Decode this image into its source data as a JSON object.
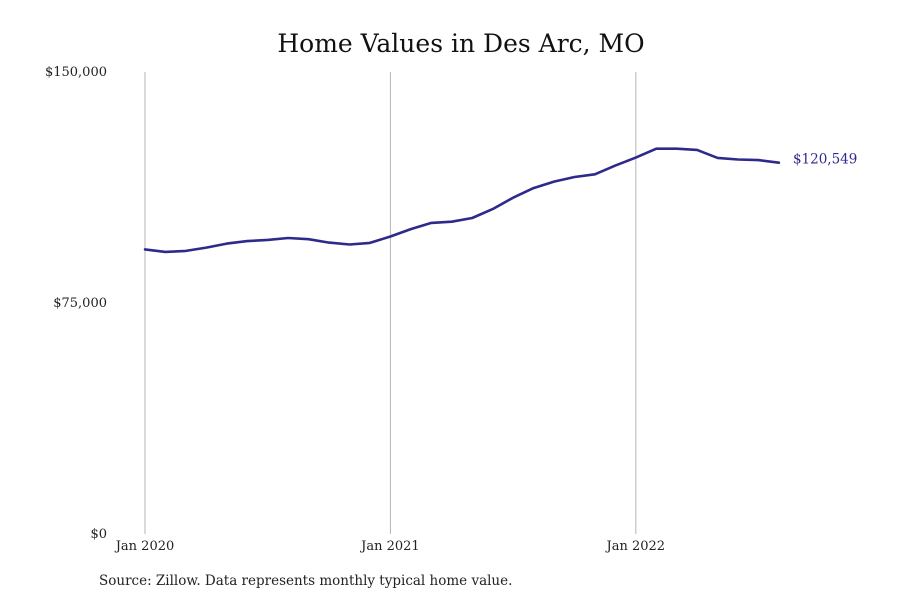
{
  "chart_data": {
    "type": "line",
    "title": "Home Values in Des Arc, MO",
    "xlabel": "",
    "ylabel": "",
    "ylim": [
      0,
      150000
    ],
    "yticks": [
      {
        "value": 0,
        "label": "$0"
      },
      {
        "value": 75000,
        "label": "$75,000"
      },
      {
        "value": 150000,
        "label": "$150,000"
      }
    ],
    "xticks": [
      {
        "value": "2020-01",
        "label": "Jan 2020"
      },
      {
        "value": "2021-01",
        "label": "Jan 2021"
      },
      {
        "value": "2022-01",
        "label": "Jan 2022"
      }
    ],
    "grid": "vertical",
    "series": [
      {
        "name": "",
        "color": "#2e2a8c",
        "x": [
          "2020-01",
          "2020-02",
          "2020-03",
          "2020-04",
          "2020-05",
          "2020-06",
          "2020-07",
          "2020-08",
          "2020-09",
          "2020-10",
          "2020-11",
          "2020-12",
          "2021-01",
          "2021-02",
          "2021-03",
          "2021-04",
          "2021-05",
          "2021-06",
          "2021-07",
          "2021-08",
          "2021-09",
          "2021-10",
          "2021-11",
          "2021-12",
          "2022-01",
          "2022-02",
          "2022-03",
          "2022-04",
          "2022-05",
          "2022-06",
          "2022-07",
          "2022-08"
        ],
        "values": [
          92400,
          91600,
          91900,
          93000,
          94300,
          95100,
          95500,
          96100,
          95700,
          94600,
          94000,
          94500,
          96600,
          99000,
          101000,
          101400,
          102600,
          105500,
          109200,
          112300,
          114400,
          115900,
          116800,
          119600,
          122200,
          125100,
          125100,
          124700,
          122100,
          121600,
          121400,
          120549
        ]
      }
    ],
    "end_label": "$120,549",
    "source": "Source: Zillow. Data represents monthly typical home value."
  }
}
